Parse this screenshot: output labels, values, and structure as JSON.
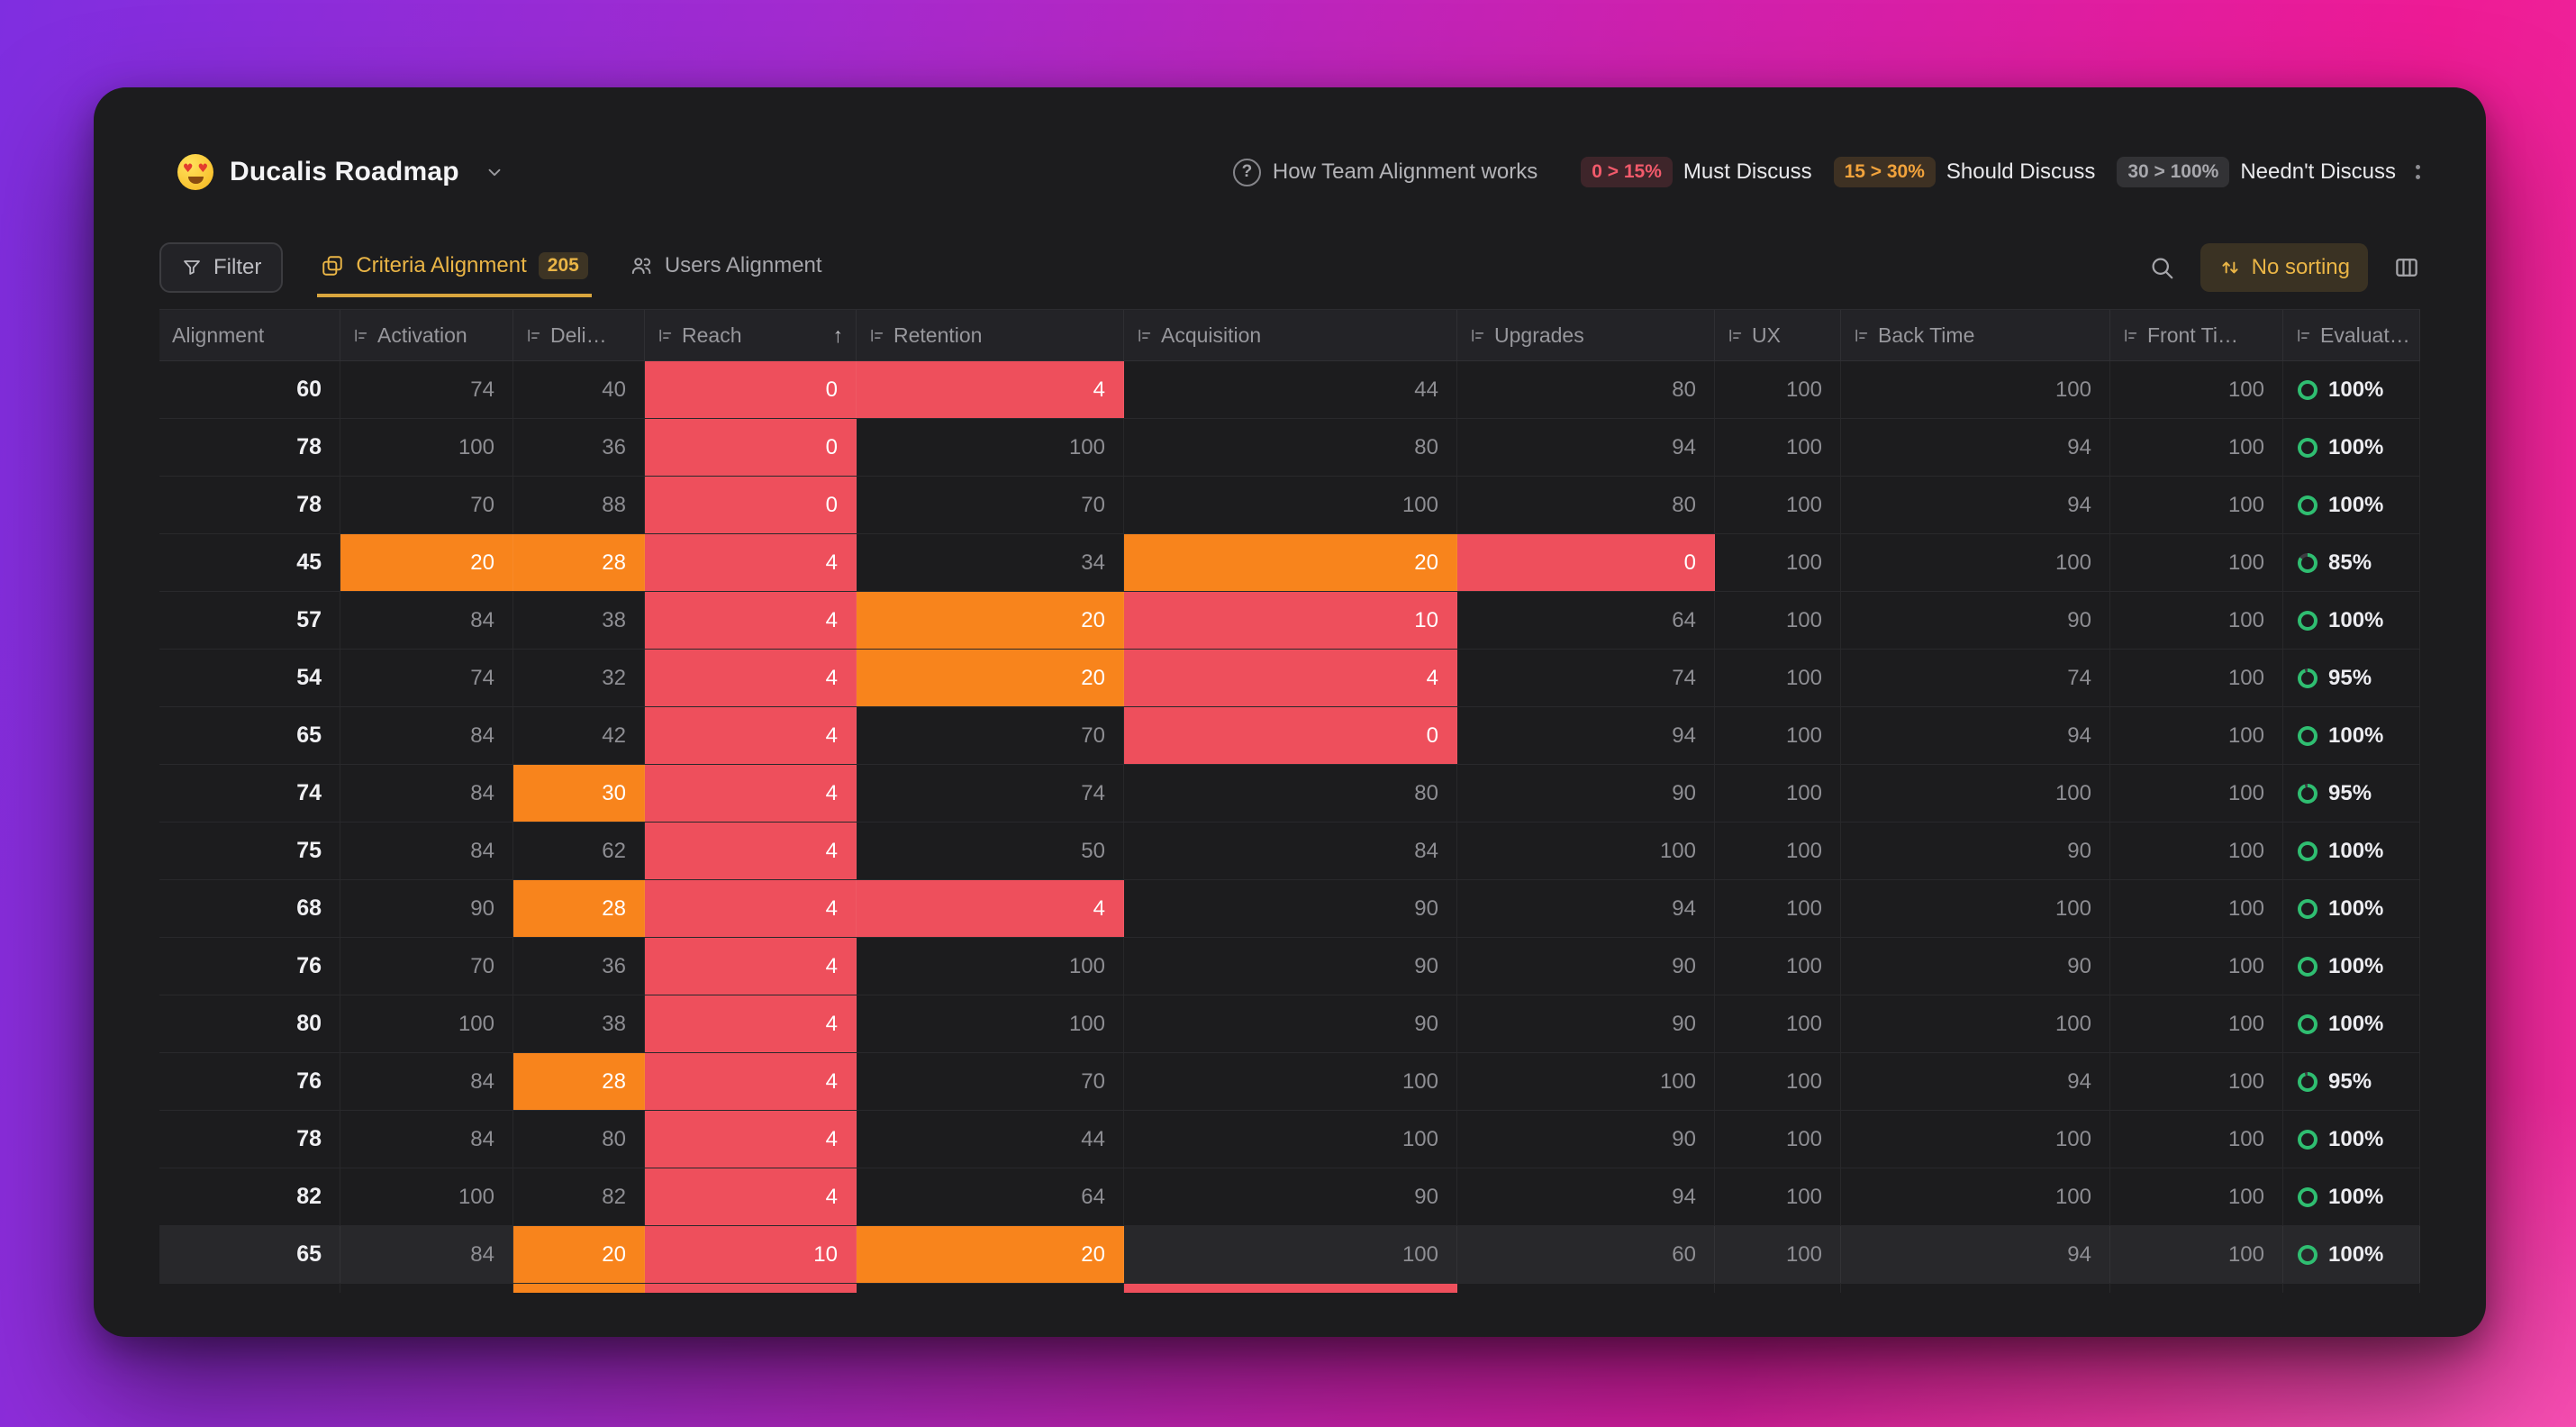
{
  "header": {
    "title": "Ducalis Roadmap",
    "help_label": "How Team Alignment works",
    "legend": [
      {
        "range": "0 > 15%",
        "label": "Must Discuss",
        "type": "red"
      },
      {
        "range": "15 > 30%",
        "label": "Should Discuss",
        "type": "orange"
      },
      {
        "range": "30 > 100%",
        "label": "Needn't Discuss",
        "type": "gray"
      }
    ]
  },
  "toolbar": {
    "filter_label": "Filter",
    "tabs": [
      {
        "label": "Criteria Alignment",
        "badge": "205",
        "active": true
      },
      {
        "label": "Users Alignment",
        "active": false
      }
    ],
    "sorting_label": "No sorting"
  },
  "icons": {
    "help_glyph": "?",
    "sort_arrow_glyph": "↑"
  },
  "colors": {
    "cell_red": "#ee4f5c",
    "cell_orange": "#f8841c",
    "accent_gold": "#eab546",
    "ring_green": "#2fbe71",
    "legend_red": "#f25a6b",
    "legend_orange": "#f2a33c",
    "legend_gray": "#a8a8ad"
  },
  "table": {
    "columns": [
      {
        "label": "Alignment",
        "icon": false
      },
      {
        "label": "Activation",
        "icon": true
      },
      {
        "label": "Deli…",
        "icon": true
      },
      {
        "label": "Reach",
        "icon": true,
        "sort": "asc"
      },
      {
        "label": "Retention",
        "icon": true
      },
      {
        "label": "Acquisition",
        "icon": true
      },
      {
        "label": "Upgrades",
        "icon": true
      },
      {
        "label": "UX",
        "icon": true
      },
      {
        "label": "Back Time",
        "icon": true
      },
      {
        "label": "Front Ti…",
        "icon": true
      },
      {
        "label": "Evaluat…",
        "icon": true
      }
    ],
    "rows": [
      {
        "cells": [
          {
            "v": "60"
          },
          {
            "v": "74"
          },
          {
            "v": "40"
          },
          {
            "v": "0",
            "hl": "red"
          },
          {
            "v": "4",
            "hl": "red"
          },
          {
            "v": "44"
          },
          {
            "v": "80"
          },
          {
            "v": "100"
          },
          {
            "v": "100"
          },
          {
            "v": "100"
          },
          {
            "v": "100%",
            "ring": 100
          }
        ]
      },
      {
        "cells": [
          {
            "v": "78"
          },
          {
            "v": "100"
          },
          {
            "v": "36"
          },
          {
            "v": "0",
            "hl": "red"
          },
          {
            "v": "100"
          },
          {
            "v": "80"
          },
          {
            "v": "94"
          },
          {
            "v": "100"
          },
          {
            "v": "94"
          },
          {
            "v": "100"
          },
          {
            "v": "100%",
            "ring": 100
          }
        ]
      },
      {
        "cells": [
          {
            "v": "78"
          },
          {
            "v": "70"
          },
          {
            "v": "88"
          },
          {
            "v": "0",
            "hl": "red"
          },
          {
            "v": "70"
          },
          {
            "v": "100"
          },
          {
            "v": "80"
          },
          {
            "v": "100"
          },
          {
            "v": "94"
          },
          {
            "v": "100"
          },
          {
            "v": "100%",
            "ring": 100
          }
        ]
      },
      {
        "cells": [
          {
            "v": "45"
          },
          {
            "v": "20",
            "hl": "orange"
          },
          {
            "v": "28",
            "hl": "orange"
          },
          {
            "v": "4",
            "hl": "red"
          },
          {
            "v": "34"
          },
          {
            "v": "20",
            "hl": "orange"
          },
          {
            "v": "0",
            "hl": "red"
          },
          {
            "v": "100"
          },
          {
            "v": "100"
          },
          {
            "v": "100"
          },
          {
            "v": "85%",
            "ring": 85
          }
        ]
      },
      {
        "cells": [
          {
            "v": "57"
          },
          {
            "v": "84"
          },
          {
            "v": "38"
          },
          {
            "v": "4",
            "hl": "red"
          },
          {
            "v": "20",
            "hl": "orange"
          },
          {
            "v": "10",
            "hl": "red"
          },
          {
            "v": "64"
          },
          {
            "v": "100"
          },
          {
            "v": "90"
          },
          {
            "v": "100"
          },
          {
            "v": "100%",
            "ring": 100
          }
        ]
      },
      {
        "cells": [
          {
            "v": "54"
          },
          {
            "v": "74"
          },
          {
            "v": "32"
          },
          {
            "v": "4",
            "hl": "red"
          },
          {
            "v": "20",
            "hl": "orange"
          },
          {
            "v": "4",
            "hl": "red"
          },
          {
            "v": "74"
          },
          {
            "v": "100"
          },
          {
            "v": "74"
          },
          {
            "v": "100"
          },
          {
            "v": "95%",
            "ring": 95
          }
        ]
      },
      {
        "cells": [
          {
            "v": "65"
          },
          {
            "v": "84"
          },
          {
            "v": "42"
          },
          {
            "v": "4",
            "hl": "red"
          },
          {
            "v": "70"
          },
          {
            "v": "0",
            "hl": "red"
          },
          {
            "v": "94"
          },
          {
            "v": "100"
          },
          {
            "v": "94"
          },
          {
            "v": "100"
          },
          {
            "v": "100%",
            "ring": 100
          }
        ]
      },
      {
        "cells": [
          {
            "v": "74"
          },
          {
            "v": "84"
          },
          {
            "v": "30",
            "hl": "orange"
          },
          {
            "v": "4",
            "hl": "red"
          },
          {
            "v": "74"
          },
          {
            "v": "80"
          },
          {
            "v": "90"
          },
          {
            "v": "100"
          },
          {
            "v": "100"
          },
          {
            "v": "100"
          },
          {
            "v": "95%",
            "ring": 95
          }
        ]
      },
      {
        "cells": [
          {
            "v": "75"
          },
          {
            "v": "84"
          },
          {
            "v": "62"
          },
          {
            "v": "4",
            "hl": "red"
          },
          {
            "v": "50"
          },
          {
            "v": "84"
          },
          {
            "v": "100"
          },
          {
            "v": "100"
          },
          {
            "v": "90"
          },
          {
            "v": "100"
          },
          {
            "v": "100%",
            "ring": 100
          }
        ]
      },
      {
        "cells": [
          {
            "v": "68"
          },
          {
            "v": "90"
          },
          {
            "v": "28",
            "hl": "orange"
          },
          {
            "v": "4",
            "hl": "red"
          },
          {
            "v": "4",
            "hl": "red"
          },
          {
            "v": "90"
          },
          {
            "v": "94"
          },
          {
            "v": "100"
          },
          {
            "v": "100"
          },
          {
            "v": "100"
          },
          {
            "v": "100%",
            "ring": 100
          }
        ]
      },
      {
        "cells": [
          {
            "v": "76"
          },
          {
            "v": "70"
          },
          {
            "v": "36"
          },
          {
            "v": "4",
            "hl": "red"
          },
          {
            "v": "100"
          },
          {
            "v": "90"
          },
          {
            "v": "90"
          },
          {
            "v": "100"
          },
          {
            "v": "90"
          },
          {
            "v": "100"
          },
          {
            "v": "100%",
            "ring": 100
          }
        ]
      },
      {
        "cells": [
          {
            "v": "80"
          },
          {
            "v": "100"
          },
          {
            "v": "38"
          },
          {
            "v": "4",
            "hl": "red"
          },
          {
            "v": "100"
          },
          {
            "v": "90"
          },
          {
            "v": "90"
          },
          {
            "v": "100"
          },
          {
            "v": "100"
          },
          {
            "v": "100"
          },
          {
            "v": "100%",
            "ring": 100
          }
        ]
      },
      {
        "cells": [
          {
            "v": "76"
          },
          {
            "v": "84"
          },
          {
            "v": "28",
            "hl": "orange"
          },
          {
            "v": "4",
            "hl": "red"
          },
          {
            "v": "70"
          },
          {
            "v": "100"
          },
          {
            "v": "100"
          },
          {
            "v": "100"
          },
          {
            "v": "94"
          },
          {
            "v": "100"
          },
          {
            "v": "95%",
            "ring": 95
          }
        ]
      },
      {
        "cells": [
          {
            "v": "78"
          },
          {
            "v": "84"
          },
          {
            "v": "80"
          },
          {
            "v": "4",
            "hl": "red"
          },
          {
            "v": "44"
          },
          {
            "v": "100"
          },
          {
            "v": "90"
          },
          {
            "v": "100"
          },
          {
            "v": "100"
          },
          {
            "v": "100"
          },
          {
            "v": "100%",
            "ring": 100
          }
        ]
      },
      {
        "cells": [
          {
            "v": "82"
          },
          {
            "v": "100"
          },
          {
            "v": "82"
          },
          {
            "v": "4",
            "hl": "red"
          },
          {
            "v": "64"
          },
          {
            "v": "90"
          },
          {
            "v": "94"
          },
          {
            "v": "100"
          },
          {
            "v": "100"
          },
          {
            "v": "100"
          },
          {
            "v": "100%",
            "ring": 100
          }
        ]
      },
      {
        "hover": true,
        "cells": [
          {
            "v": "65"
          },
          {
            "v": "84"
          },
          {
            "v": "20",
            "hl": "orange"
          },
          {
            "v": "10",
            "hl": "red"
          },
          {
            "v": "20",
            "hl": "orange"
          },
          {
            "v": "100"
          },
          {
            "v": "60"
          },
          {
            "v": "100"
          },
          {
            "v": "94"
          },
          {
            "v": "100"
          },
          {
            "v": "100%",
            "ring": 100
          }
        ]
      }
    ],
    "partial_row": [
      "",
      "",
      "orange",
      "red",
      "",
      "red",
      "",
      "",
      "",
      "",
      ""
    ]
  }
}
